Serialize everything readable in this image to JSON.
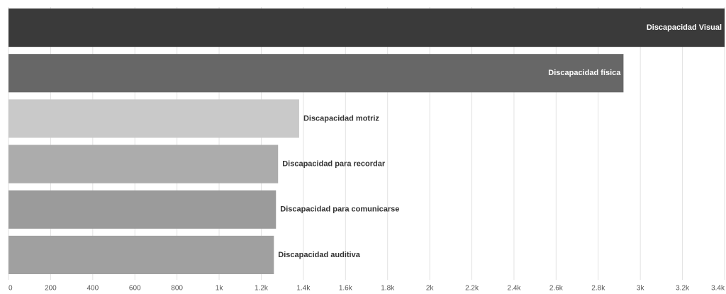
{
  "chart_data": {
    "type": "bar",
    "orientation": "horizontal",
    "categories": [
      "Discapacidad Visual",
      "Discapacidad física",
      "Discapacidad motriz",
      "Discapacidad para recordar",
      "Discapacidad para comunicarse",
      "Discapacidad auditiva"
    ],
    "values": [
      3400,
      2920,
      1380,
      1280,
      1270,
      1260
    ],
    "colors": [
      "#3a3a3a",
      "#676767",
      "#c9c9c9",
      "#acacac",
      "#9b9b9b",
      "#a0a0a0"
    ],
    "xlim": [
      0,
      3400
    ],
    "xticks": [
      0,
      200,
      400,
      600,
      800,
      {
        "value": 1000,
        "label": "1k"
      },
      {
        "value": 1200,
        "label": "1.2k"
      },
      {
        "value": 1400,
        "label": "1.4k"
      },
      {
        "value": 1600,
        "label": "1.6k"
      },
      {
        "value": 1800,
        "label": "1.8k"
      },
      {
        "value": 2000,
        "label": "2k"
      },
      {
        "value": 2200,
        "label": "2.2k"
      },
      {
        "value": 2400,
        "label": "2.4k"
      },
      {
        "value": 2600,
        "label": "2.6k"
      },
      {
        "value": 2800,
        "label": "2.8k"
      },
      {
        "value": 3000,
        "label": "3k"
      },
      {
        "value": 3200,
        "label": "3.2k"
      },
      {
        "value": 3400,
        "label": "3.4k"
      }
    ],
    "grid": true
  }
}
